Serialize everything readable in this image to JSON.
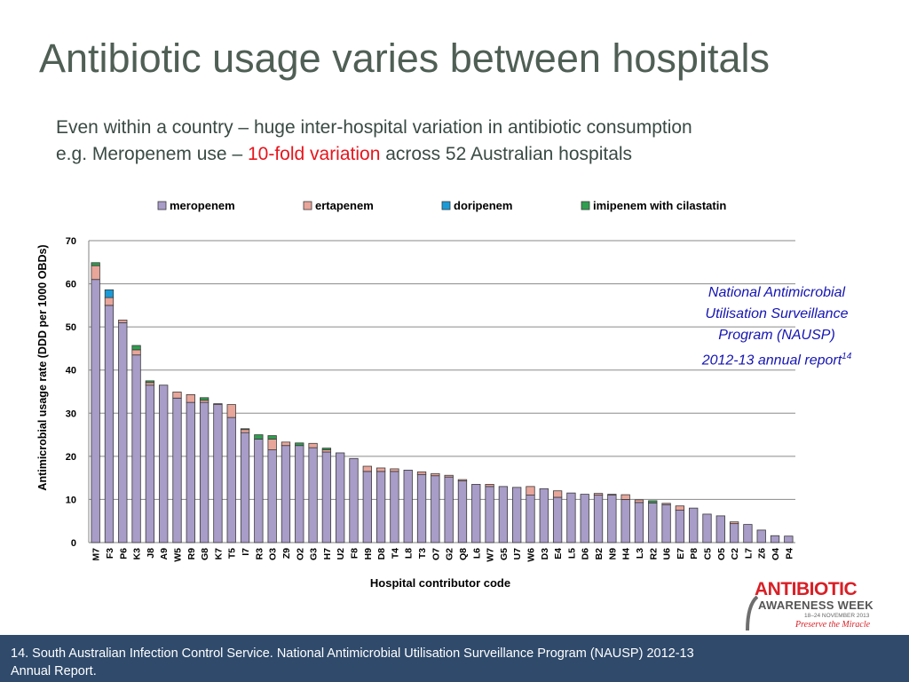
{
  "slide": {
    "title": "Antibiotic usage varies between hospitals",
    "subtitle_line1": "Even within a country – huge inter-hospital variation in antibiotic consumption",
    "subtitle_line2_prefix": "e.g. Meropenem use – ",
    "subtitle_line2_highlight": "10-fold variation",
    "subtitle_line2_suffix": " across 52 Australian hospitals",
    "highlight_color": "#e8141c"
  },
  "source_note": {
    "line1": "National Antimicrobial",
    "line2": "Utilisation Surveillance",
    "line3": "Program (NAUSP)",
    "line4": "2012-13 annual report",
    "superscript": "14"
  },
  "logo": {
    "word1": "ANTIBIOTIC",
    "word2": "AWARENESS WEEK",
    "dates": "18–24 NOVEMBER 2013",
    "tagline": "Preserve the Miracle"
  },
  "footnote": {
    "text": "14. South Australian Infection Control Service. National Antimicrobial Utilisation Surveillance Program (NAUSP) 2012-13 Annual Report."
  },
  "chart_data": {
    "type": "bar",
    "stacked": true,
    "xlabel": "Hospital contributor code",
    "ylabel": "Antimicrobial usage rate (DDD per 1000 OBDs)",
    "ylim": [
      0,
      70
    ],
    "yticks": [
      0,
      10,
      20,
      30,
      40,
      50,
      60,
      70
    ],
    "grid": true,
    "legend_position": "top",
    "categories": [
      "M7",
      "F3",
      "P6",
      "K3",
      "J8",
      "A9",
      "W5",
      "R9",
      "G8",
      "K7",
      "T5",
      "I7",
      "R3",
      "O3",
      "Z9",
      "O2",
      "G3",
      "H7",
      "U2",
      "F8",
      "H9",
      "D8",
      "T4",
      "L8",
      "T3",
      "O7",
      "G2",
      "Q8",
      "L6",
      "W7",
      "G5",
      "U7",
      "W6",
      "D3",
      "E4",
      "L5",
      "D6",
      "B2",
      "N9",
      "H4",
      "L3",
      "R2",
      "U6",
      "E7",
      "P8",
      "C5",
      "O5",
      "C2",
      "L7",
      "Z6",
      "O4",
      "P4"
    ],
    "series": [
      {
        "name": "meropenem",
        "color": "#a89cc8",
        "values": [
          61,
          55,
          51,
          43.5,
          36.5,
          36.5,
          33.5,
          32.5,
          32.5,
          32,
          29,
          25.5,
          24,
          21.5,
          22.5,
          22.5,
          22,
          21,
          20.8,
          19.5,
          16.5,
          16.5,
          16.5,
          16.8,
          15.8,
          15.5,
          15.2,
          14.3,
          13.5,
          13,
          13,
          12.8,
          11,
          12.5,
          10.5,
          11.5,
          11.2,
          11,
          11,
          10,
          9.3,
          9.2,
          8.8,
          7.5,
          8,
          6.6,
          6.2,
          4.4,
          4.2,
          2.9,
          1.6,
          1.5
        ]
      },
      {
        "name": "ertapenem",
        "color": "#e8a59a",
        "values": [
          3.2,
          1.8,
          0.6,
          1.2,
          0.6,
          0,
          1.4,
          1.8,
          0.5,
          0.2,
          3,
          0.7,
          0,
          2.5,
          0.8,
          0,
          1,
          0.5,
          0,
          0,
          1.2,
          0.8,
          0.6,
          0,
          0.6,
          0.5,
          0.4,
          0.3,
          0,
          0.5,
          0,
          0,
          2,
          0,
          1.5,
          0,
          0,
          0.4,
          0.2,
          1.1,
          0.6,
          0,
          0.3,
          1,
          0,
          0,
          0,
          0.4,
          0,
          0,
          0,
          0
        ]
      },
      {
        "name": "doripenem",
        "color": "#1a9bd7",
        "values": [
          0,
          1.8,
          0,
          0,
          0,
          0,
          0,
          0,
          0,
          0,
          0,
          0,
          0,
          0,
          0,
          0,
          0,
          0,
          0,
          0,
          0,
          0,
          0,
          0,
          0,
          0,
          0,
          0,
          0,
          0,
          0,
          0,
          0,
          0,
          0,
          0,
          0,
          0,
          0,
          0,
          0,
          0,
          0,
          0,
          0,
          0,
          0,
          0,
          0,
          0,
          0,
          0
        ]
      },
      {
        "name": "imipenem with cilastatin",
        "color": "#2e9e4f",
        "values": [
          0.7,
          0,
          0,
          1,
          0.4,
          0,
          0,
          0,
          0.6,
          0,
          0,
          0.2,
          1,
          0.8,
          0,
          0.6,
          0,
          0.4,
          0,
          0,
          0,
          0,
          0,
          0,
          0,
          0,
          0,
          0,
          0,
          0,
          0,
          0,
          0,
          0,
          0,
          0,
          0,
          0,
          0,
          0,
          0,
          0.5,
          0,
          0,
          0,
          0,
          0,
          0,
          0,
          0,
          0,
          0
        ]
      }
    ]
  }
}
